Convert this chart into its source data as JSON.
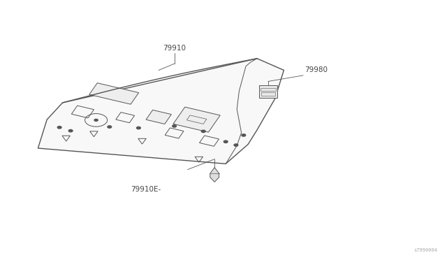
{
  "background_color": "#ffffff",
  "label_79910": "79910",
  "label_79980": "79980",
  "label_79910E": "79910E-",
  "watermark": "s7990004",
  "line_color": "#555555",
  "text_color": "#444444",
  "fig_width": 6.4,
  "fig_height": 3.72,
  "dpi": 100
}
